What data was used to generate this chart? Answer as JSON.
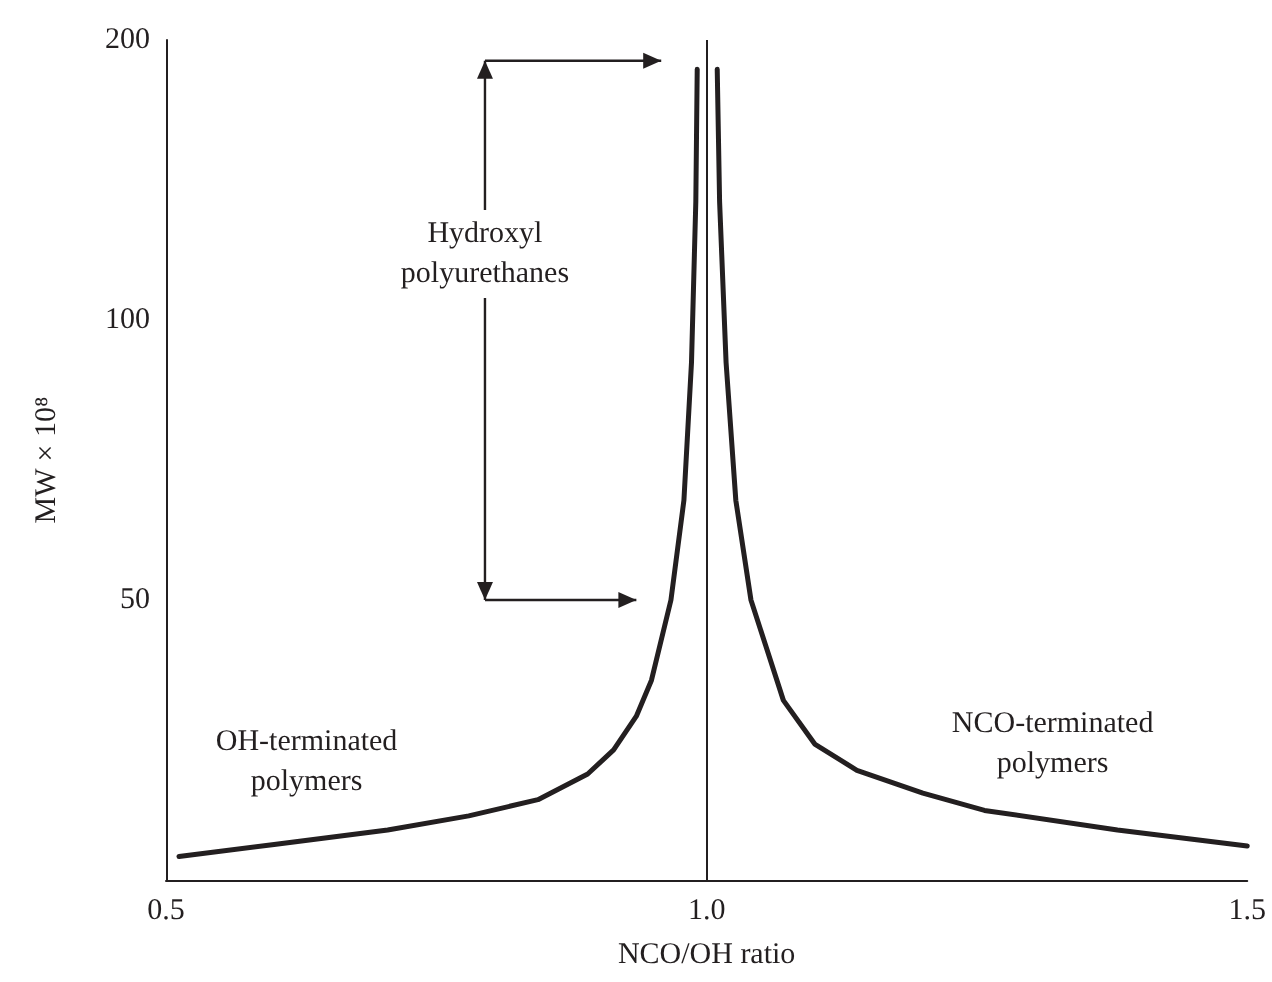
{
  "chart_data": {
    "type": "line",
    "xlabel": "NCO/OH ratio",
    "ylabel": "MW × 10⁸",
    "log": "y",
    "xlim": [
      0.5,
      1.5
    ],
    "ylim": [
      25,
      200
    ],
    "xticks": [
      {
        "value": 0.5,
        "label": "0.5"
      },
      {
        "value": 1,
        "label": "1.0"
      },
      {
        "value": 1.5,
        "label": "1.5"
      }
    ],
    "yticks": [
      50,
      100,
      200
    ],
    "series": [
      {
        "color": "#231f20",
        "x": [
          0.512,
          0.6,
          0.705,
          0.78,
          0.844,
          0.89,
          0.914,
          0.935,
          0.949,
          0.967,
          0.979,
          0.986,
          0.99,
          0.9913,
          1.0,
          1.0098,
          1.012,
          1.018,
          1.027,
          1.041,
          1.071,
          1.1,
          1.139,
          1.2,
          1.257,
          1.38,
          1.5
        ],
        "values": [
          26.5,
          27.3,
          28.3,
          29.3,
          30.5,
          32.5,
          34.5,
          37.5,
          41,
          50,
          64,
          90,
          134,
          186,
          null,
          186,
          134,
          90,
          64,
          50,
          39,
          35,
          32.8,
          31,
          29.7,
          28.3,
          27.2
        ]
      }
    ],
    "ref_lines": [
      {
        "axis": "x",
        "value": 1.0,
        "color": "#231f20"
      }
    ],
    "annotations": [
      "Hydroxyl polyurethanes",
      "OH-terminated polymers",
      "NCO-terminated polymers"
    ],
    "grid": false,
    "line_style": "solid",
    "marker": "none"
  }
}
